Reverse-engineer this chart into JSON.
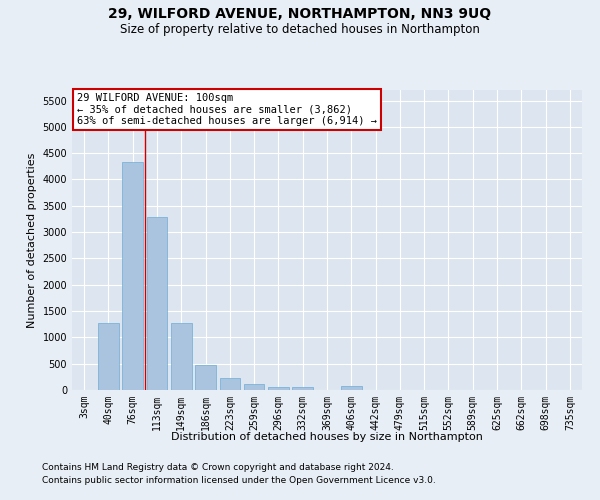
{
  "title": "29, WILFORD AVENUE, NORTHAMPTON, NN3 9UQ",
  "subtitle": "Size of property relative to detached houses in Northampton",
  "xlabel": "Distribution of detached houses by size in Northampton",
  "ylabel": "Number of detached properties",
  "footnote1": "Contains HM Land Registry data © Crown copyright and database right 2024.",
  "footnote2": "Contains public sector information licensed under the Open Government Licence v3.0.",
  "categories": [
    "3sqm",
    "40sqm",
    "76sqm",
    "113sqm",
    "149sqm",
    "186sqm",
    "223sqm",
    "259sqm",
    "296sqm",
    "332sqm",
    "369sqm",
    "406sqm",
    "442sqm",
    "479sqm",
    "515sqm",
    "552sqm",
    "589sqm",
    "625sqm",
    "662sqm",
    "698sqm",
    "735sqm"
  ],
  "values": [
    0,
    1270,
    4330,
    3280,
    1270,
    475,
    230,
    105,
    65,
    60,
    0,
    80,
    0,
    0,
    0,
    0,
    0,
    0,
    0,
    0,
    0
  ],
  "bar_color": "#aac4e0",
  "bar_edge_color": "#6aadd5",
  "vline_x": 2.5,
  "vline_color": "#cc0000",
  "annotation_text": "29 WILFORD AVENUE: 100sqm\n← 35% of detached houses are smaller (3,862)\n63% of semi-detached houses are larger (6,914) →",
  "annotation_box_color": "#ffffff",
  "annotation_box_edge": "#cc0000",
  "ylim": [
    0,
    5700
  ],
  "yticks": [
    0,
    500,
    1000,
    1500,
    2000,
    2500,
    3000,
    3500,
    4000,
    4500,
    5000,
    5500
  ],
  "bg_color": "#e8eef5",
  "plot_bg_color": "#dde6f0",
  "grid_color": "#ffffff",
  "title_fontsize": 10,
  "subtitle_fontsize": 8.5,
  "axis_label_fontsize": 8,
  "tick_fontsize": 7,
  "footnote_fontsize": 6.5
}
